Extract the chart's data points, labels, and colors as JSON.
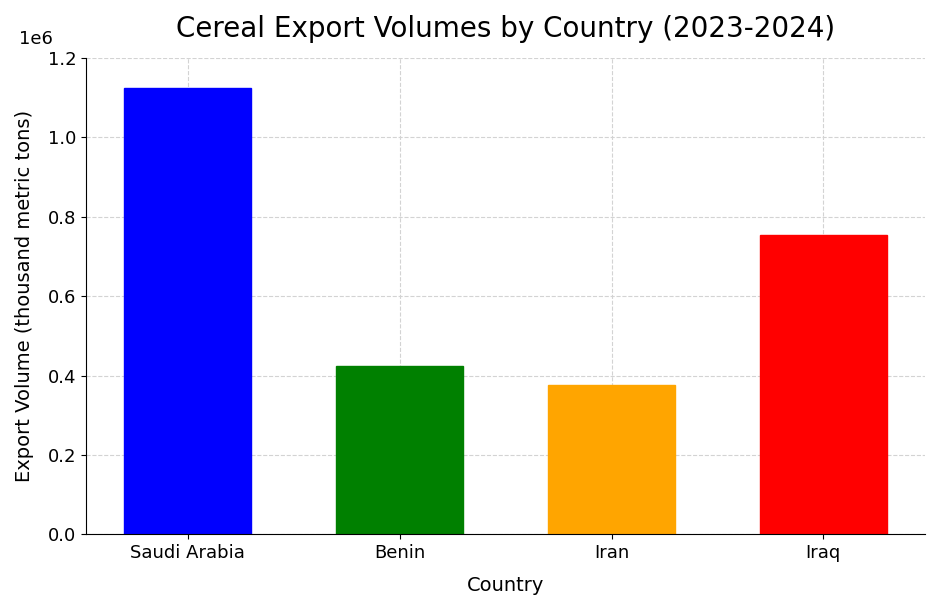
{
  "title": "Cereal Export Volumes by Country (2023-2024)",
  "xlabel": "Country",
  "ylabel": "Export Volume (thousand metric tons)",
  "categories": [
    "Saudi Arabia",
    "Benin",
    "Iran",
    "Iraq"
  ],
  "values": [
    1125000,
    425000,
    375000,
    755000
  ],
  "bar_colors": [
    "blue",
    "green",
    "orange",
    "red"
  ],
  "ylim": [
    0,
    1200000
  ],
  "grid": true,
  "background_color": "#ffffff",
  "title_fontsize": 20,
  "axis_label_fontsize": 14,
  "tick_fontsize": 13
}
